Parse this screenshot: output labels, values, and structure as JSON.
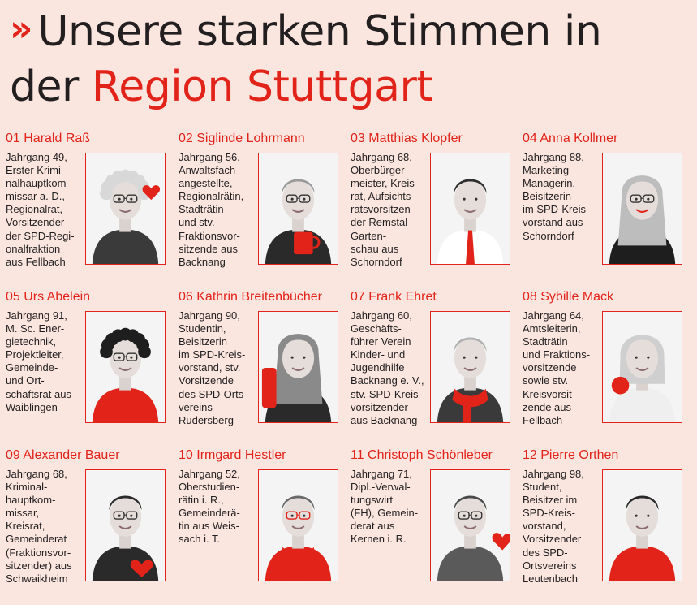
{
  "headline": {
    "chevron": "»",
    "line1": "Unsere starken Stimmen in",
    "line2_dark": "der",
    "line2_red": "Region Stuttgart"
  },
  "colors": {
    "accent": "#e2231a",
    "background": "#fbe6df",
    "text": "#231f20"
  },
  "candidates": [
    {
      "name": "01 Harald Raß",
      "bio": "Jahrgang 49,\nErster Krimi-\nnalhauptkom-\nmissar a. D.,\nRegionalrat,\nVorsitzender\nder SPD-Regi-\nonalfraktion\naus Fellbach",
      "photo": {
        "hair": "#d8d8d8",
        "hairType": "curly-grey",
        "shirt": "#3a3a3a",
        "glasses": true,
        "prop": "red-heart"
      }
    },
    {
      "name": "02 Siglinde Lohrmann",
      "bio": "Jahrgang 56,\nAnwaltsfach-\nangestellte,\nRegionalrätin,\nStadträtin\nund stv.\nFraktionsvor-\nsitzende aus\nBacknang",
      "photo": {
        "hair": "#9a9a9a",
        "hairType": "short",
        "shirt": "#2a2a2a",
        "glasses": true,
        "prop": "red-mug"
      }
    },
    {
      "name": "03 Matthias Klopfer",
      "bio": "Jahrgang 68,\nOberbürger-\nmeister, Kreis-\nrat, Aufsichts-\nratsvorsitzen-\nder Remstal\nGarten-\nschau aus\nSchorndorf",
      "photo": {
        "hair": "#2e2e2e",
        "hairType": "short",
        "shirt": "#ffffff",
        "glasses": false,
        "prop": "red-tie"
      }
    },
    {
      "name": "04 Anna Kollmer",
      "bio": "Jahrgang 88,\nMarketing-\nManagerin,\nBeisitzerin\nim SPD-Kreis-\nvorstand aus\nSchorndorf",
      "photo": {
        "hair": "#bdbdbd",
        "hairType": "long",
        "shirt": "#1e1e1e",
        "glasses": true,
        "prop": "red-lips"
      }
    },
    {
      "name": "05 Urs Abelein",
      "bio": "Jahrgang 91,\nM. Sc. Ener-\ngietechnik,\nProjektleiter,\nGemeinde-\nund Ort-\nschaftsrat aus\nWaiblingen",
      "photo": {
        "hair": "#1e1e1e",
        "hairType": "curly-dark",
        "shirt": "#e2231a",
        "glasses": true,
        "prop": "none"
      }
    },
    {
      "name": "06 Kathrin Breitenbücher",
      "bio": "Jahrgang 90,\nStudentin,\nBeisitzerin\nim SPD-Kreis-\nvorstand, stv.\nVorsitzende\ndes SPD-Orts-\nvereins\nRudersberg",
      "photo": {
        "hair": "#8a8a8a",
        "hairType": "long",
        "shirt": "#2a2a2a",
        "glasses": false,
        "prop": "red-bag"
      }
    },
    {
      "name": "07 Frank Ehret",
      "bio": "Jahrgang 60,\nGeschäfts-\nführer Verein\nKinder- und\nJugendhilfe\nBacknang e. V.,\nstv. SPD-Kreis-\nvorsitzender\naus Backnang",
      "photo": {
        "hair": "#b0b0b0",
        "hairType": "short",
        "shirt": "#3a3a3a",
        "glasses": false,
        "prop": "red-scarf"
      }
    },
    {
      "name": "08 Sybille Mack",
      "bio": "Jahrgang 64,\nAmtsleiterin,\nStadträtin\nund Fraktions-\nvorsitzende\nsowie stv.\nKreisvorsit-\nzende aus\nFellbach",
      "photo": {
        "hair": "#cfcfcf",
        "hairType": "bob",
        "shirt": "#efefef",
        "glasses": false,
        "prop": "red-apple"
      }
    },
    {
      "name": "09 Alexander Bauer",
      "bio": "Jahrgang 68,\nKriminal-\nhauptkom-\nmissar,\nKreisrat,\nGemeinderat\n(Fraktionsvor-\nsitzender) aus\nSchwaikheim",
      "photo": {
        "hair": "#2a2a2a",
        "hairType": "short",
        "shirt": "#2a2a2a",
        "glasses": true,
        "prop": "red-heart-low"
      }
    },
    {
      "name": "10 Irmgard Hestler",
      "bio": "Jahrgang 52,\nOberstudien-\nrätin i. R.,\nGemeinderä-\ntin aus Weis-\nsach i. T.",
      "photo": {
        "hair": "#6a6a6a",
        "hairType": "short",
        "shirt": "#e2231a",
        "glasses": true,
        "prop": "red-scarf"
      }
    },
    {
      "name": "11 Christoph Schönleber",
      "bio": "Jahrgang 71,\nDipl.-Verwal-\ntungswirt\n(FH), Gemein-\nderat aus\nKernen i. R.",
      "photo": {
        "hair": "#4a4a4a",
        "hairType": "short",
        "shirt": "#5a5a5a",
        "glasses": true,
        "prop": "red-heart-side"
      }
    },
    {
      "name": "12 Pierre Orthen",
      "bio": "Jahrgang 98,\nStudent,\nBeisitzer im\nSPD-Kreis-\nvorstand,\nVorsitzender\ndes SPD-\nOrtsvereins\nLeutenbach",
      "photo": {
        "hair": "#2a2a2a",
        "hairType": "short",
        "shirt": "#e2231a",
        "glasses": false,
        "prop": "none"
      }
    }
  ]
}
